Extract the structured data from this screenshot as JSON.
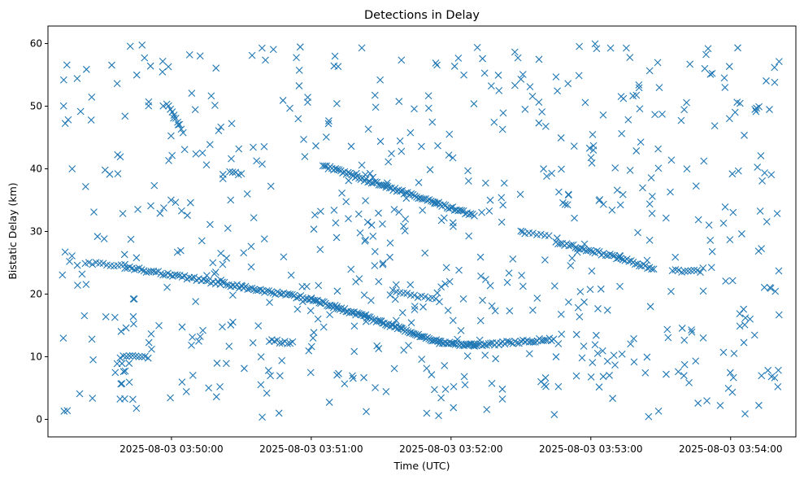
{
  "chart_data": {
    "type": "scatter",
    "title": "Detections in Delay",
    "xlabel": "Time (UTC)",
    "ylabel": "Bistatic Delay (km)",
    "marker": "x",
    "marker_color": "#1f77b4",
    "grid": false,
    "x_tick_labels": [
      "2025-08-03 03:50:00",
      "2025-08-03 03:51:00",
      "2025-08-03 03:52:00",
      "2025-08-03 03:53:00",
      "2025-08-03 03:54:00"
    ],
    "y_ticks": [
      0,
      10,
      20,
      30,
      40,
      50,
      60
    ],
    "xlim": [
      "2025-08-03 03:49:07",
      "2025-08-03 03:54:28"
    ],
    "ylim": [
      -2.8,
      62.8
    ],
    "x_range_data": [
      "2025-08-03 03:49:13",
      "2025-08-03 03:54:22"
    ],
    "y_range_data": [
      0,
      60
    ],
    "tracks": [
      {
        "start": [
          "2025-08-03 03:49:23",
          25.0
        ],
        "end": [
          "2025-08-03 03:49:40",
          24.6
        ],
        "count": 12
      },
      {
        "start": [
          "2025-08-03 03:49:40",
          24.3
        ],
        "end": [
          "2025-08-03 03:50:20",
          21.8
        ],
        "count": 40
      },
      {
        "start": [
          "2025-08-03 03:50:20",
          21.8
        ],
        "end": [
          "2025-08-03 03:51:00",
          19.2
        ],
        "count": 45
      },
      {
        "start": [
          "2025-08-03 03:51:00",
          19.2
        ],
        "end": [
          "2025-08-03 03:51:30",
          15.5
        ],
        "count": 45
      },
      {
        "start": [
          "2025-08-03 03:51:30",
          15.5
        ],
        "end": [
          "2025-08-03 03:51:55",
          12.3
        ],
        "count": 40
      },
      {
        "start": [
          "2025-08-03 03:51:55",
          12.3
        ],
        "end": [
          "2025-08-03 03:52:10",
          11.8
        ],
        "count": 25
      },
      {
        "start": [
          "2025-08-03 03:52:10",
          11.8
        ],
        "end": [
          "2025-08-03 03:52:44",
          12.8
        ],
        "count": 40
      },
      {
        "start": [
          "2025-08-03 03:51:05",
          40.5
        ],
        "end": [
          "2025-08-03 03:52:10",
          32.5
        ],
        "count": 85
      },
      {
        "start": [
          "2025-08-03 03:52:45",
          28.3
        ],
        "end": [
          "2025-08-03 03:53:12",
          25.8
        ],
        "count": 30
      },
      {
        "start": [
          "2025-08-03 03:53:12",
          25.8
        ],
        "end": [
          "2025-08-03 03:53:27",
          24.0
        ],
        "count": 18
      },
      {
        "start": [
          "2025-08-03 03:52:30",
          30.0
        ],
        "end": [
          "2025-08-03 03:52:42",
          29.2
        ],
        "count": 8
      },
      {
        "start": [
          "2025-08-03 03:51:35",
          20.5
        ],
        "end": [
          "2025-08-03 03:51:55",
          19.0
        ],
        "count": 14
      },
      {
        "start": [
          "2025-08-03 03:50:42",
          12.5
        ],
        "end": [
          "2025-08-03 03:50:52",
          12.2
        ],
        "count": 10
      },
      {
        "start": [
          "2025-08-03 03:49:38",
          10.0
        ],
        "end": [
          "2025-08-03 03:49:50",
          9.9
        ],
        "count": 10
      },
      {
        "start": [
          "2025-08-03 03:53:35",
          23.8
        ],
        "end": [
          "2025-08-03 03:53:47",
          23.6
        ],
        "count": 10
      },
      {
        "start": [
          "2025-08-03 03:49:58",
          50.5
        ],
        "end": [
          "2025-08-03 03:50:05",
          46.0
        ],
        "count": 10
      },
      {
        "start": [
          "2025-08-03 03:50:25",
          39.3
        ],
        "end": [
          "2025-08-03 03:50:30",
          39.2
        ],
        "count": 5
      },
      {
        "start": [
          "2025-08-03 03:52:48",
          34.6
        ],
        "end": [
          "2025-08-03 03:52:50",
          34.5
        ],
        "count": 3
      }
    ],
    "noise_detections": 640
  }
}
